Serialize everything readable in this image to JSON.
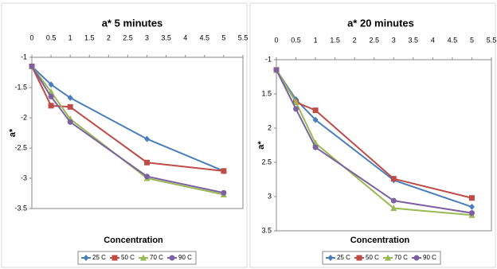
{
  "chart_data": [
    {
      "type": "line",
      "title": "a* 5 minutes",
      "x_label": "Concentration",
      "y_label": "a*",
      "x": [
        0,
        0.5,
        1,
        3,
        5
      ],
      "xlim": [
        0,
        5.5
      ],
      "xticks": [
        0,
        0.5,
        1,
        1.5,
        2,
        2.5,
        3,
        3.5,
        4,
        4.5,
        5,
        5.5
      ],
      "ylim": [
        -3.5,
        -1
      ],
      "yticks": [
        -1,
        -1.5,
        -2,
        -2.5,
        -3,
        -3.5
      ],
      "legend": "bottom",
      "series": [
        {
          "name": "25 C",
          "color": "#4a7ebb",
          "marker": "diamond",
          "values": [
            -1.15,
            -1.45,
            -1.67,
            -2.35,
            -2.88
          ]
        },
        {
          "name": "50 C",
          "color": "#be4b48",
          "marker": "square",
          "values": [
            -1.15,
            -1.8,
            -1.82,
            -2.74,
            -2.88
          ]
        },
        {
          "name": "70 C",
          "color": "#98b954",
          "marker": "triangle",
          "values": [
            -1.15,
            -1.57,
            -2.02,
            -3.0,
            -3.27
          ]
        },
        {
          "name": "90 C",
          "color": "#7d60a0",
          "marker": "circle",
          "values": [
            -1.15,
            -1.65,
            -2.07,
            -2.97,
            -3.24
          ]
        }
      ]
    },
    {
      "type": "line",
      "title": "a* 20 minutes",
      "x_label": "Concentration",
      "y_label": "a*",
      "x": [
        0,
        0.5,
        1,
        3,
        5
      ],
      "xlim": [
        0,
        5.5
      ],
      "xticks": [
        0,
        0.5,
        1,
        1.5,
        2,
        2.5,
        3,
        3.5,
        4,
        4.5,
        5,
        5.5
      ],
      "ylim": [
        -3.5,
        -1
      ],
      "yticks": [
        -1,
        {
          "value": -1.5,
          "label": "1.5"
        },
        {
          "value": -2,
          "label": "2"
        },
        {
          "value": -2.5,
          "label": "2.5"
        },
        {
          "value": -3,
          "label": "3"
        },
        {
          "value": -3.5,
          "label": "3.5"
        }
      ],
      "legend": "bottom",
      "series": [
        {
          "name": "25 C",
          "color": "#4a7ebb",
          "marker": "diamond",
          "values": [
            -1.15,
            -1.58,
            -1.88,
            -2.76,
            -3.15
          ]
        },
        {
          "name": "50 C",
          "color": "#be4b48",
          "marker": "square",
          "values": [
            -1.15,
            -1.62,
            -1.74,
            -2.74,
            -3.02
          ]
        },
        {
          "name": "70 C",
          "color": "#98b954",
          "marker": "triangle",
          "values": [
            -1.15,
            -1.62,
            -2.22,
            -3.17,
            -3.27
          ]
        },
        {
          "name": "90 C",
          "color": "#7d60a0",
          "marker": "circle",
          "values": [
            -1.15,
            -1.72,
            -2.28,
            -3.06,
            -3.24
          ]
        }
      ]
    }
  ]
}
